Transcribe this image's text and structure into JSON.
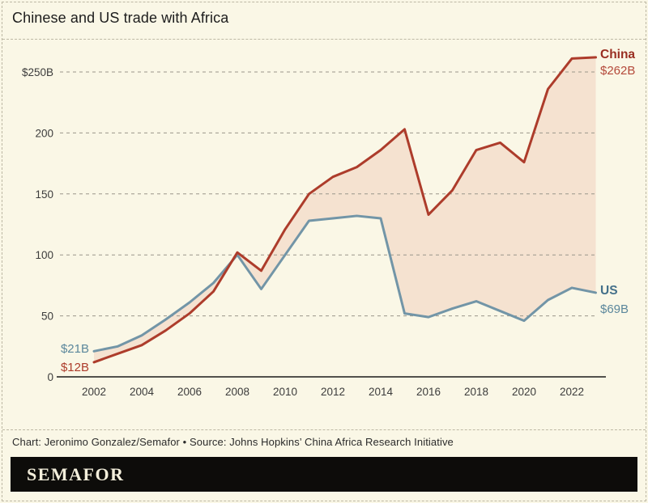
{
  "header": {
    "title": "Chinese and US trade with Africa"
  },
  "chart_data": {
    "type": "line",
    "title": "Chinese and US trade with Africa",
    "x": [
      2002,
      2003,
      2004,
      2005,
      2006,
      2007,
      2008,
      2009,
      2010,
      2011,
      2012,
      2013,
      2014,
      2015,
      2016,
      2017,
      2018,
      2019,
      2020,
      2021,
      2022,
      2023
    ],
    "series": [
      {
        "name": "China",
        "color": "#ad3c2b",
        "values": [
          12,
          19,
          26,
          38,
          52,
          70,
          102,
          87,
          121,
          150,
          164,
          172,
          186,
          203,
          133,
          153,
          186,
          192,
          176,
          236,
          261,
          262
        ]
      },
      {
        "name": "US",
        "color": "#7295a7",
        "values": [
          21,
          25,
          34,
          47,
          61,
          77,
          100,
          72,
          100,
          128,
          130,
          132,
          130,
          52,
          49,
          56,
          62,
          54,
          46,
          63,
          73,
          69
        ]
      }
    ],
    "x_ticks": [
      2002,
      2004,
      2006,
      2008,
      2010,
      2012,
      2014,
      2016,
      2018,
      2020,
      2022
    ],
    "y_ticks": [
      {
        "value": 250,
        "label": "$250B"
      },
      {
        "value": 200,
        "label": "200"
      },
      {
        "value": 150,
        "label": "150"
      },
      {
        "value": 100,
        "label": "100"
      },
      {
        "value": 50,
        "label": "50"
      },
      {
        "value": 0,
        "label": "0"
      }
    ],
    "ylim": [
      0,
      275
    ],
    "grid": "dashed horizontal gridlines",
    "legend_position": "inline end-of-line labels",
    "fill_between_color": "#f5e2d0",
    "annotations": {
      "us_start": "$21B",
      "china_start": "$12B",
      "china_label": "China",
      "china_end_value": "$262B",
      "us_label": "US",
      "us_end_value": "$69B"
    }
  },
  "footer": {
    "caption": "Chart: Jeronimo Gonzalez/Semafor • Source: Johns Hopkins’ China Africa Research Initiative",
    "logo": "SEMAFOR"
  },
  "colors": {
    "background": "#faf7e6",
    "china_line": "#ad3c2b",
    "us_line": "#7295a7",
    "area_fill": "#f5e2d0",
    "logo_bar": "#0d0c0a",
    "gridline": "#9a968a"
  }
}
